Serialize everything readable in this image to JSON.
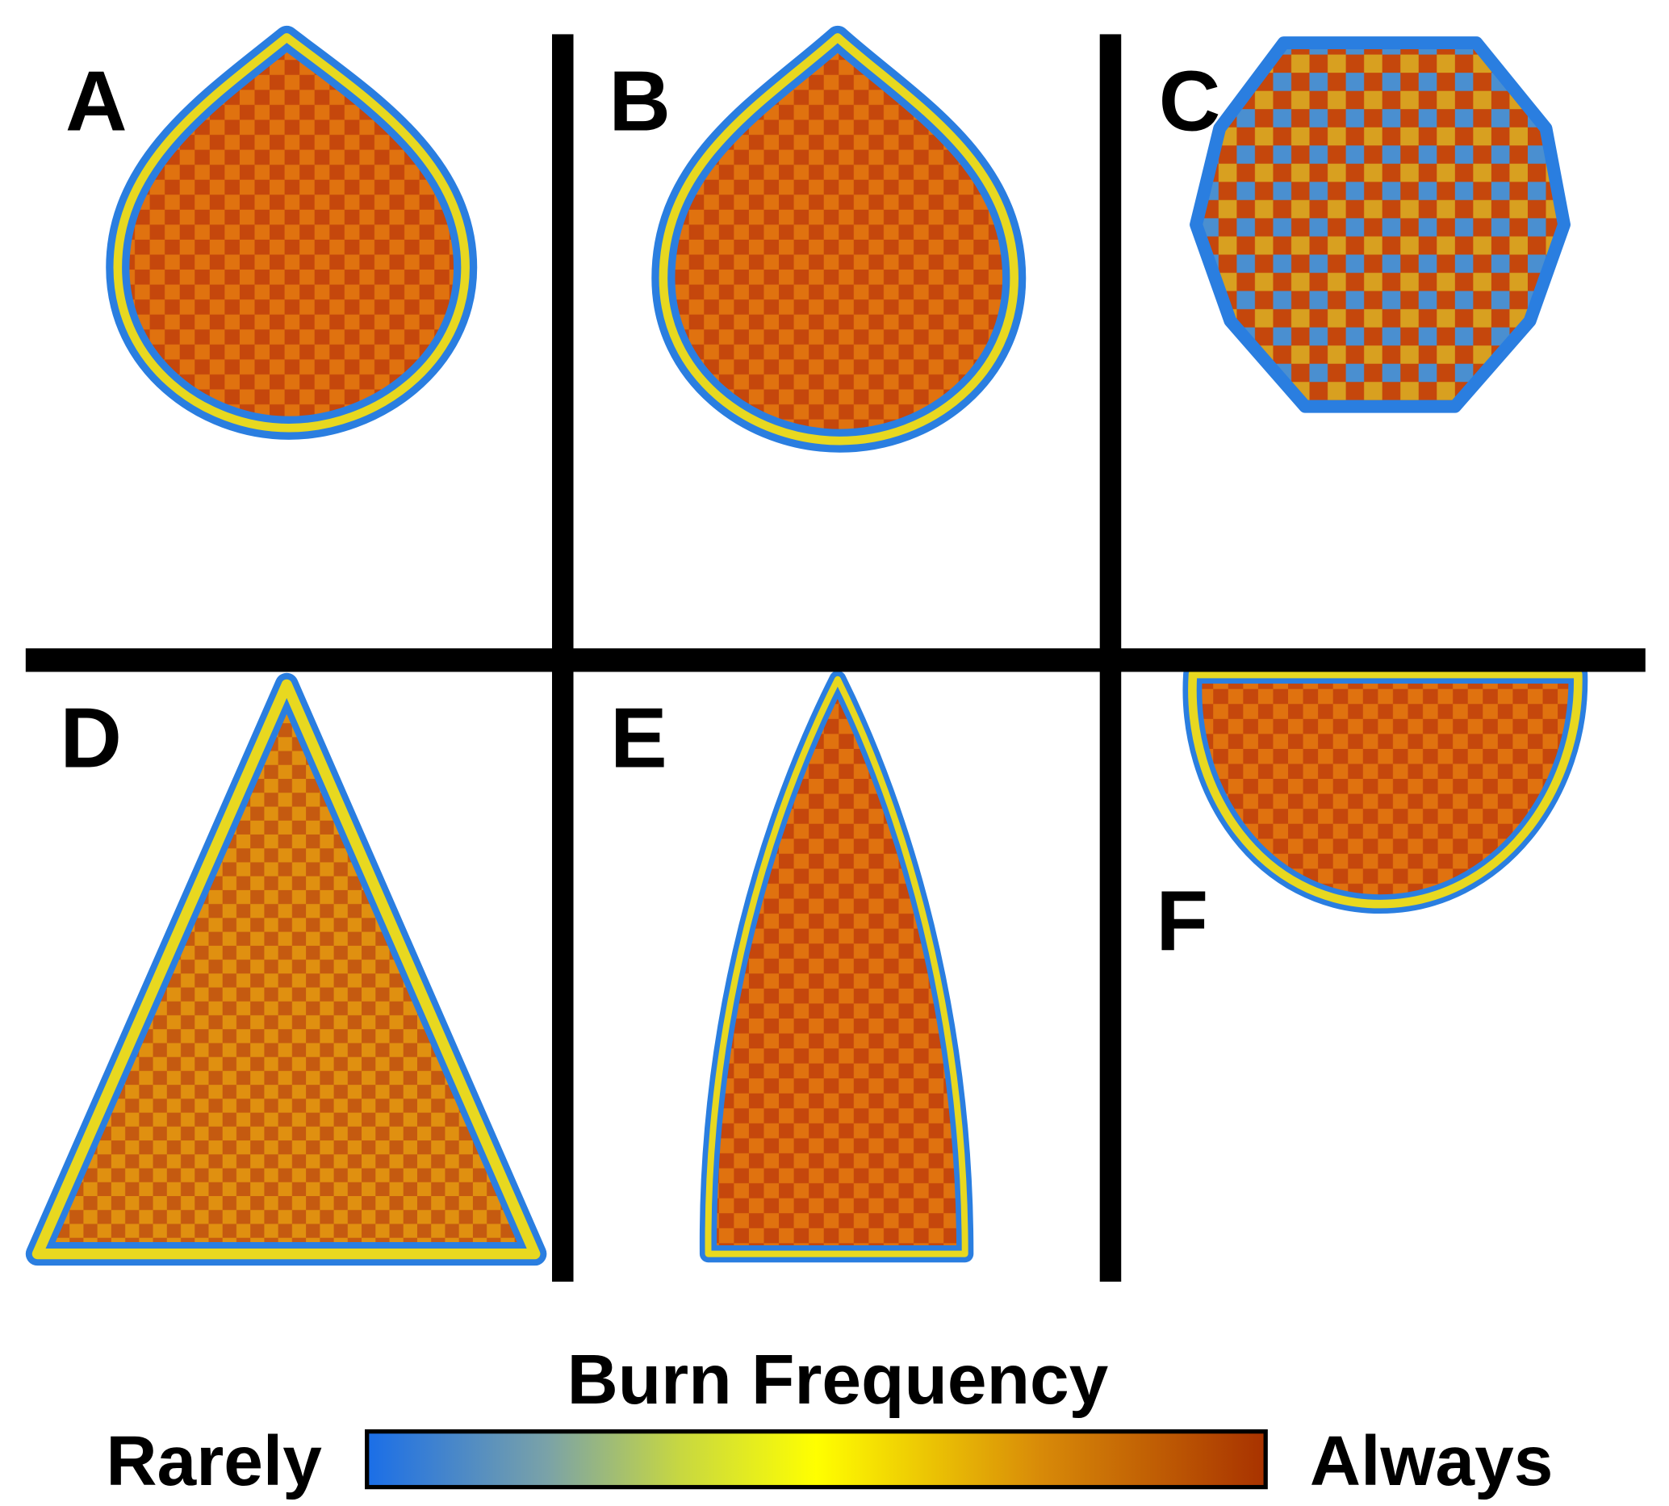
{
  "panels": [
    {
      "label": "A"
    },
    {
      "label": "B"
    },
    {
      "label": "C"
    },
    {
      "label": "D"
    },
    {
      "label": "E"
    },
    {
      "label": "F"
    }
  ],
  "colorbar": {
    "title": "Burn Frequency",
    "low": "Rarely",
    "high": "Always"
  }
}
